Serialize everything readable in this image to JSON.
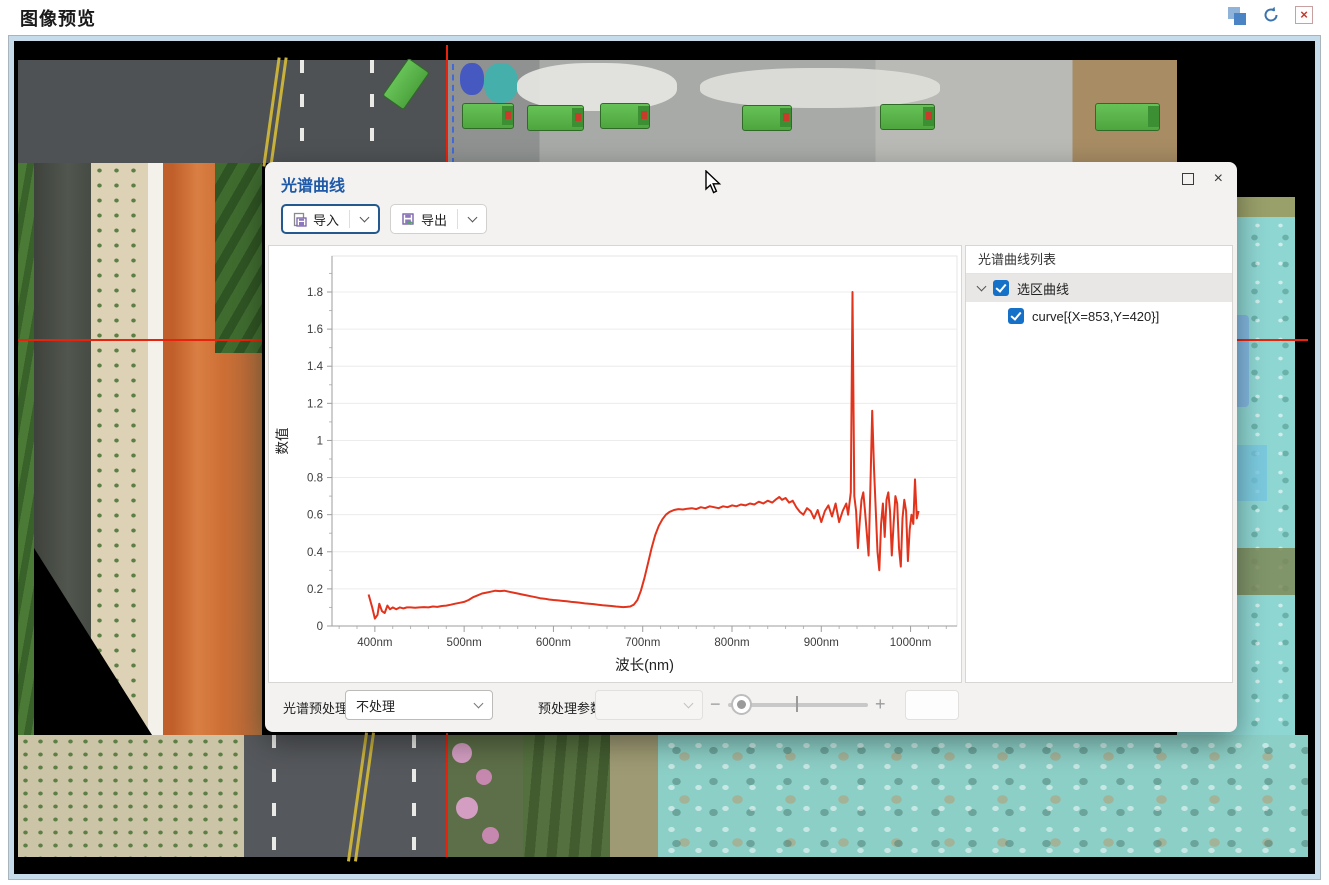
{
  "window": {
    "title": "图像预览",
    "icons": {
      "layers": "layers-icon",
      "reset": "reset-icon",
      "close": "close-window-icon"
    }
  },
  "dialog": {
    "title": "光谱曲线",
    "toolbar": {
      "import_label": "导入",
      "export_label": "导出"
    },
    "curve_list": {
      "header": "光谱曲线列表",
      "group": {
        "label": "选区曲线",
        "checked": true,
        "expanded": true
      },
      "items": [
        {
          "label": "curve[{X=853,Y=420}]",
          "checked": true
        }
      ]
    },
    "preprocess": {
      "label": "光谱预处理",
      "selected": "不处理",
      "params_label": "预处理参数",
      "minus": "−",
      "plus": "+",
      "param_select_value": "",
      "param_input_value": ""
    }
  },
  "chart_data": {
    "type": "line",
    "title": "",
    "xlabel": "波长(nm)",
    "ylabel": "数值",
    "x_axis_range": [
      352,
      1052
    ],
    "y_axis_range": [
      0,
      1.994
    ],
    "x_tick_values": [
      400,
      500,
      600,
      700,
      800,
      900,
      1000
    ],
    "x_tick_labels": [
      "400nm",
      "500nm",
      "600nm",
      "700nm",
      "800nm",
      "900nm",
      "1000nm"
    ],
    "x_minor_step": 20,
    "y_tick_values": [
      0,
      0.2,
      0.4,
      0.6,
      0.8,
      1.0,
      1.2,
      1.4,
      1.6,
      1.8
    ],
    "y_tick_labels": [
      "0",
      "0.2",
      "0.4",
      "0.6",
      "0.8",
      "1",
      "1.2",
      "1.4",
      "1.6",
      "1.8"
    ],
    "y_minor_step": 0.1,
    "grid": "horizontal",
    "legend": "none",
    "line_color": "#e2341d",
    "series": [
      {
        "name": "curve[{X=853,Y=420}]",
        "points": [
          [
            393,
            0.17
          ],
          [
            397,
            0.1
          ],
          [
            400,
            0.04
          ],
          [
            403,
            0.06
          ],
          [
            405,
            0.12
          ],
          [
            408,
            0.08
          ],
          [
            411,
            0.07
          ],
          [
            414,
            0.11
          ],
          [
            417,
            0.09
          ],
          [
            420,
            0.1
          ],
          [
            424,
            0.09
          ],
          [
            428,
            0.1
          ],
          [
            432,
            0.095
          ],
          [
            436,
            0.1
          ],
          [
            440,
            0.1
          ],
          [
            445,
            0.098
          ],
          [
            450,
            0.1
          ],
          [
            455,
            0.102
          ],
          [
            460,
            0.1
          ],
          [
            465,
            0.105
          ],
          [
            470,
            0.103
          ],
          [
            475,
            0.108
          ],
          [
            480,
            0.11
          ],
          [
            485,
            0.115
          ],
          [
            490,
            0.12
          ],
          [
            495,
            0.125
          ],
          [
            500,
            0.13
          ],
          [
            505,
            0.14
          ],
          [
            510,
            0.155
          ],
          [
            515,
            0.165
          ],
          [
            520,
            0.175
          ],
          [
            525,
            0.18
          ],
          [
            530,
            0.185
          ],
          [
            535,
            0.19
          ],
          [
            540,
            0.188
          ],
          [
            545,
            0.19
          ],
          [
            550,
            0.185
          ],
          [
            555,
            0.18
          ],
          [
            560,
            0.175
          ],
          [
            565,
            0.17
          ],
          [
            570,
            0.165
          ],
          [
            575,
            0.16
          ],
          [
            580,
            0.155
          ],
          [
            585,
            0.15
          ],
          [
            590,
            0.147
          ],
          [
            595,
            0.143
          ],
          [
            600,
            0.14
          ],
          [
            605,
            0.138
          ],
          [
            610,
            0.135
          ],
          [
            615,
            0.133
          ],
          [
            620,
            0.13
          ],
          [
            625,
            0.128
          ],
          [
            630,
            0.125
          ],
          [
            635,
            0.122
          ],
          [
            640,
            0.12
          ],
          [
            645,
            0.118
          ],
          [
            650,
            0.115
          ],
          [
            655,
            0.112
          ],
          [
            660,
            0.11
          ],
          [
            665,
            0.108
          ],
          [
            670,
            0.105
          ],
          [
            675,
            0.103
          ],
          [
            678,
            0.102
          ],
          [
            682,
            0.103
          ],
          [
            686,
            0.105
          ],
          [
            690,
            0.115
          ],
          [
            694,
            0.14
          ],
          [
            698,
            0.19
          ],
          [
            702,
            0.26
          ],
          [
            706,
            0.34
          ],
          [
            710,
            0.42
          ],
          [
            714,
            0.49
          ],
          [
            718,
            0.54
          ],
          [
            722,
            0.575
          ],
          [
            726,
            0.6
          ],
          [
            730,
            0.615
          ],
          [
            735,
            0.625
          ],
          [
            740,
            0.63
          ],
          [
            745,
            0.628
          ],
          [
            750,
            0.632
          ],
          [
            755,
            0.635
          ],
          [
            760,
            0.63
          ],
          [
            765,
            0.64
          ],
          [
            770,
            0.635
          ],
          [
            775,
            0.645
          ],
          [
            780,
            0.64
          ],
          [
            785,
            0.635
          ],
          [
            790,
            0.645
          ],
          [
            795,
            0.64
          ],
          [
            800,
            0.65
          ],
          [
            805,
            0.645
          ],
          [
            810,
            0.655
          ],
          [
            815,
            0.65
          ],
          [
            820,
            0.66
          ],
          [
            825,
            0.655
          ],
          [
            830,
            0.67
          ],
          [
            835,
            0.66
          ],
          [
            840,
            0.675
          ],
          [
            845,
            0.665
          ],
          [
            850,
            0.685
          ],
          [
            853,
            0.695
          ],
          [
            856,
            0.68
          ],
          [
            860,
            0.69
          ],
          [
            864,
            0.665
          ],
          [
            868,
            0.675
          ],
          [
            872,
            0.64
          ],
          [
            876,
            0.615
          ],
          [
            880,
            0.6
          ],
          [
            884,
            0.635
          ],
          [
            888,
            0.62
          ],
          [
            892,
            0.58
          ],
          [
            896,
            0.625
          ],
          [
            900,
            0.56
          ],
          [
            904,
            0.62
          ],
          [
            908,
            0.65
          ],
          [
            912,
            0.59
          ],
          [
            916,
            0.66
          ],
          [
            920,
            0.56
          ],
          [
            924,
            0.62
          ],
          [
            928,
            0.66
          ],
          [
            930,
            0.6
          ],
          [
            933,
            0.72
          ],
          [
            935,
            1.8
          ],
          [
            937,
            0.7
          ],
          [
            939,
            0.62
          ],
          [
            941,
            0.42
          ],
          [
            943,
            0.56
          ],
          [
            945,
            0.68
          ],
          [
            947,
            0.72
          ],
          [
            949,
            0.62
          ],
          [
            951,
            0.5
          ],
          [
            953,
            0.38
          ],
          [
            955,
            0.75
          ],
          [
            957,
            1.16
          ],
          [
            959,
            0.85
          ],
          [
            961,
            0.62
          ],
          [
            963,
            0.4
          ],
          [
            965,
            0.3
          ],
          [
            967,
            0.55
          ],
          [
            969,
            0.66
          ],
          [
            971,
            0.48
          ],
          [
            973,
            0.68
          ],
          [
            975,
            0.72
          ],
          [
            977,
            0.62
          ],
          [
            979,
            0.38
          ],
          [
            981,
            0.55
          ],
          [
            983,
            0.7
          ],
          [
            985,
            0.66
          ],
          [
            987,
            0.42
          ],
          [
            989,
            0.32
          ],
          [
            991,
            0.58
          ],
          [
            993,
            0.68
          ],
          [
            995,
            0.62
          ],
          [
            997,
            0.35
          ],
          [
            999,
            0.52
          ],
          [
            1001,
            0.6
          ],
          [
            1003,
            0.55
          ],
          [
            1005,
            0.79
          ],
          [
            1007,
            0.58
          ],
          [
            1009,
            0.62
          ]
        ]
      }
    ]
  },
  "scene": {
    "colors": {
      "crosshair_red": "#e8230d",
      "guide_blue": "#4169d8",
      "dirt_orange": "#cd6f35",
      "water_dark": "#434741",
      "vegetation": "#4a7a36",
      "bank_beige": "#ded2b6",
      "truck_green": "#5cb84e",
      "teal_ground": "#8ed6d2",
      "blue_patch": "#7fb0e4",
      "asphalt": "#55585c",
      "blossom_pink": "#d49ec2",
      "black_border": "#000000"
    }
  }
}
